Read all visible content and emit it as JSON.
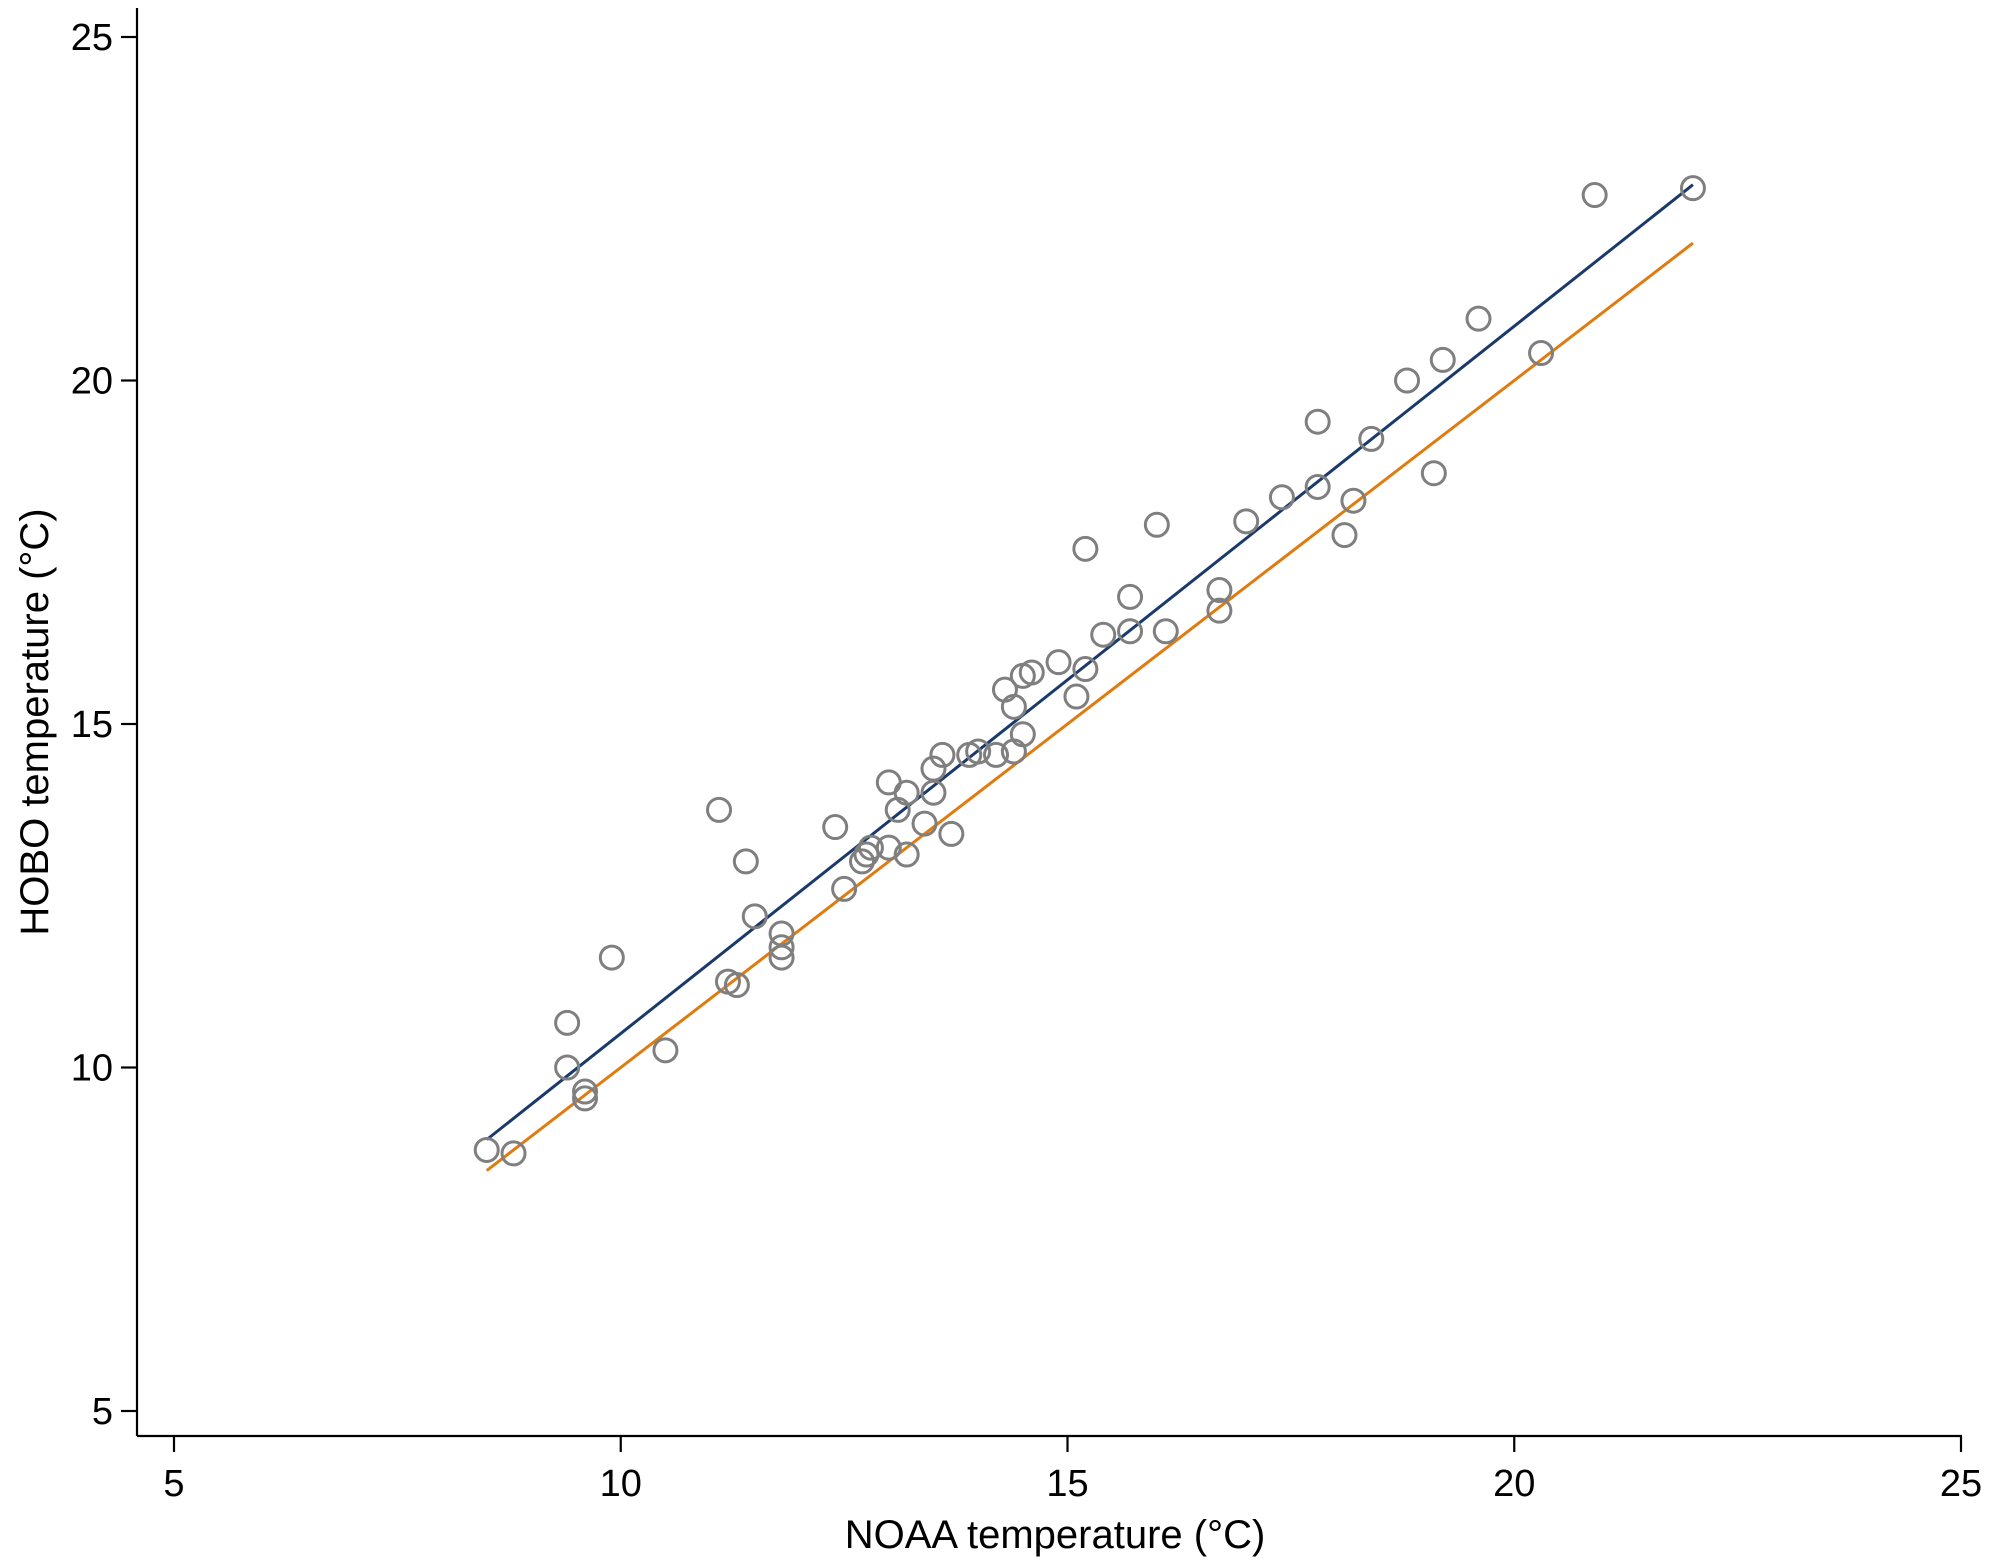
{
  "chart_data": {
    "type": "scatter",
    "xlabel": "NOAA temperature (°C)",
    "ylabel": "HOBO temperature (°C)",
    "xlim": [
      5,
      25
    ],
    "ylim": [
      5,
      25
    ],
    "x_ticks": [
      5,
      10,
      15,
      20,
      25
    ],
    "y_ticks": [
      5,
      10,
      15,
      20,
      25
    ],
    "grid": false,
    "series": [
      {
        "kind": "points",
        "marker": "hollow-circle",
        "color": "#7f7f7f",
        "points": [
          [
            8.5,
            8.8
          ],
          [
            8.8,
            8.75
          ],
          [
            9.4,
            10.65
          ],
          [
            9.4,
            10.0
          ],
          [
            9.6,
            9.65
          ],
          [
            9.6,
            9.55
          ],
          [
            9.9,
            11.6
          ],
          [
            10.5,
            10.25
          ],
          [
            11.1,
            13.75
          ],
          [
            11.2,
            11.25
          ],
          [
            11.3,
            11.2
          ],
          [
            11.4,
            13.0
          ],
          [
            11.5,
            12.2
          ],
          [
            11.8,
            11.95
          ],
          [
            11.8,
            11.75
          ],
          [
            11.8,
            11.6
          ],
          [
            12.4,
            13.5
          ],
          [
            12.5,
            12.6
          ],
          [
            12.7,
            13.0
          ],
          [
            12.75,
            13.1
          ],
          [
            12.8,
            13.2
          ],
          [
            13.0,
            14.15
          ],
          [
            13.0,
            13.2
          ],
          [
            13.1,
            13.75
          ],
          [
            13.2,
            14.0
          ],
          [
            13.2,
            13.1
          ],
          [
            13.4,
            13.55
          ],
          [
            13.5,
            14.35
          ],
          [
            13.5,
            14.0
          ],
          [
            13.6,
            14.55
          ],
          [
            13.7,
            13.4
          ],
          [
            13.9,
            14.55
          ],
          [
            14.0,
            14.6
          ],
          [
            14.2,
            14.55
          ],
          [
            14.3,
            15.5
          ],
          [
            14.4,
            15.25
          ],
          [
            14.4,
            14.6
          ],
          [
            14.5,
            15.7
          ],
          [
            14.5,
            14.85
          ],
          [
            14.6,
            15.75
          ],
          [
            14.9,
            15.9
          ],
          [
            15.1,
            15.4
          ],
          [
            15.2,
            17.55
          ],
          [
            15.2,
            15.8
          ],
          [
            15.4,
            16.3
          ],
          [
            15.7,
            16.85
          ],
          [
            15.7,
            16.35
          ],
          [
            16.0,
            17.9
          ],
          [
            16.1,
            16.35
          ],
          [
            16.7,
            16.95
          ],
          [
            16.7,
            16.65
          ],
          [
            17.0,
            17.95
          ],
          [
            17.4,
            18.3
          ],
          [
            17.8,
            19.4
          ],
          [
            17.8,
            18.45
          ],
          [
            18.1,
            17.75
          ],
          [
            18.2,
            18.25
          ],
          [
            18.4,
            19.15
          ],
          [
            18.8,
            20.0
          ],
          [
            19.1,
            18.65
          ],
          [
            19.2,
            20.3
          ],
          [
            19.6,
            20.9
          ],
          [
            20.3,
            20.4
          ],
          [
            20.9,
            22.7
          ],
          [
            22.0,
            22.8
          ]
        ]
      },
      {
        "kind": "line",
        "color": "#1a3a6b",
        "x": [
          8.5,
          22.0
        ],
        "y": [
          8.95,
          22.85
        ]
      },
      {
        "kind": "line",
        "color": "#e07b10",
        "x": [
          8.5,
          22.0
        ],
        "y": [
          8.5,
          22.0
        ]
      }
    ]
  }
}
